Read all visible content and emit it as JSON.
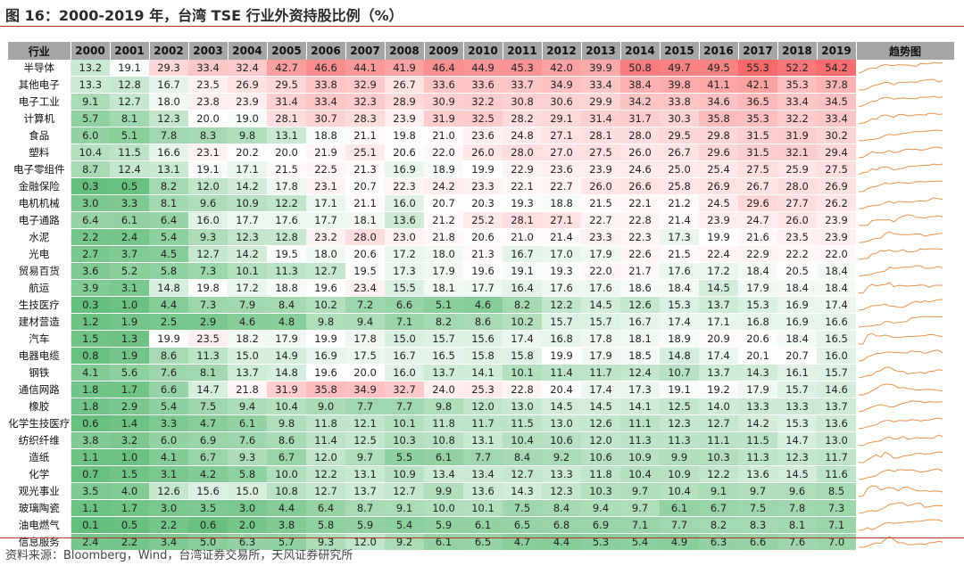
{
  "figure": {
    "title": "图 16：2000-2019 年，台湾 TSE 行业外资持股比例（%）",
    "source": "资料来源：Bloomberg，Wind，台湾证券交易所，天风证券研究所"
  },
  "table": {
    "industry_header": "行业",
    "trend_header": "趋势图"
  },
  "colors": {
    "high": "#f8696b",
    "mid": "#ffffff",
    "low": "#63be7b",
    "spark": "#e8924a",
    "header": "#a6a6a6",
    "rule": "#b8342b"
  },
  "chart_data": {
    "type": "heatmap",
    "title": "图 16：2000-2019 年，台湾 TSE 行业外资持股比例（%）",
    "unit": "%",
    "color_scale": [
      "#63be7b",
      "#ffffff",
      "#f8696b"
    ],
    "color_range": [
      0,
      55.3
    ],
    "columns": [
      "2000",
      "2001",
      "2002",
      "2003",
      "2004",
      "2005",
      "2006",
      "2007",
      "2008",
      "2009",
      "2010",
      "2011",
      "2012",
      "2013",
      "2014",
      "2015",
      "2016",
      "2017",
      "2018",
      "2019"
    ],
    "rows": [
      {
        "name": "半导体",
        "values": [
          13.2,
          19.1,
          29.3,
          33.4,
          32.4,
          42.7,
          46.6,
          44.1,
          41.9,
          46.4,
          44.9,
          45.3,
          42.0,
          39.9,
          50.8,
          49.7,
          49.5,
          55.3,
          52.2,
          54.2
        ]
      },
      {
        "name": "其他电子",
        "values": [
          13.3,
          12.8,
          16.7,
          23.5,
          26.9,
          29.5,
          33.8,
          32.9,
          26.7,
          33.6,
          33.6,
          33.7,
          34.9,
          33.4,
          38.4,
          39.8,
          41.1,
          42.1,
          35.3,
          37.8
        ]
      },
      {
        "name": "电子工业",
        "values": [
          9.1,
          12.7,
          18.0,
          23.8,
          23.9,
          31.4,
          33.4,
          32.3,
          28.9,
          30.9,
          32.2,
          30.8,
          30.6,
          29.9,
          34.2,
          33.8,
          34.6,
          36.5,
          33.4,
          34.5
        ]
      },
      {
        "name": "计算机",
        "values": [
          5.7,
          8.1,
          12.3,
          20.0,
          19.0,
          28.1,
          30.7,
          28.3,
          23.9,
          31.9,
          32.5,
          28.2,
          29.1,
          31.4,
          31.7,
          30.3,
          35.8,
          35.3,
          32.2,
          33.4
        ]
      },
      {
        "name": "食品",
        "values": [
          6.0,
          5.1,
          7.8,
          8.3,
          9.8,
          13.1,
          18.8,
          21.1,
          19.8,
          21.0,
          23.6,
          24.8,
          27.1,
          28.1,
          28.0,
          29.5,
          29.8,
          31.5,
          31.9,
          30.2
        ]
      },
      {
        "name": "塑料",
        "values": [
          10.4,
          11.5,
          16.6,
          23.1,
          20.2,
          20.0,
          21.9,
          25.1,
          20.6,
          22.0,
          26.0,
          28.0,
          27.0,
          27.5,
          26.0,
          26.7,
          29.6,
          31.5,
          32.1,
          29.4
        ]
      },
      {
        "name": "电子零组件",
        "values": [
          8.7,
          12.4,
          13.1,
          19.1,
          17.1,
          21.5,
          22.5,
          21.3,
          16.9,
          18.9,
          19.9,
          22.9,
          23.6,
          23.9,
          24.6,
          25.0,
          25.4,
          27.5,
          25.9,
          27.5
        ]
      },
      {
        "name": "金融保险",
        "values": [
          0.3,
          0.5,
          8.2,
          12.0,
          14.2,
          17.8,
          23.1,
          20.7,
          22.3,
          24.2,
          23.3,
          22.1,
          22.7,
          26.0,
          26.6,
          25.8,
          26.9,
          26.7,
          28.0,
          26.9
        ]
      },
      {
        "name": "电机机械",
        "values": [
          3.0,
          3.3,
          8.1,
          9.6,
          10.9,
          12.2,
          17.1,
          21.1,
          16.0,
          20.7,
          20.3,
          19.3,
          18.8,
          21.5,
          22.1,
          21.2,
          24.5,
          29.6,
          27.7,
          26.2
        ]
      },
      {
        "name": "电子通路",
        "values": [
          6.4,
          6.1,
          6.4,
          16.0,
          17.7,
          17.6,
          17.7,
          18.1,
          13.6,
          21.2,
          25.2,
          28.1,
          27.1,
          22.7,
          22.8,
          21.4,
          23.9,
          24.7,
          26.0,
          23.9
        ]
      },
      {
        "name": "水泥",
        "values": [
          2.2,
          2.4,
          5.4,
          9.3,
          12.3,
          12.8,
          23.2,
          28.0,
          23.0,
          21.8,
          20.6,
          21.0,
          21.4,
          23.3,
          22.3,
          17.3,
          19.9,
          21.6,
          23.5,
          23.9
        ]
      },
      {
        "name": "光电",
        "values": [
          2.7,
          3.7,
          4.5,
          12.7,
          14.2,
          19.5,
          18.0,
          20.6,
          17.2,
          18.0,
          21.3,
          16.7,
          17.0,
          17.9,
          22.6,
          21.5,
          22.4,
          22.9,
          22.2,
          22.0
        ]
      },
      {
        "name": "贸易百货",
        "values": [
          3.6,
          5.2,
          5.8,
          7.3,
          10.1,
          11.3,
          12.7,
          19.5,
          17.3,
          17.9,
          19.6,
          19.1,
          19.3,
          22.0,
          21.7,
          17.6,
          17.2,
          18.4,
          20.5,
          18.4
        ]
      },
      {
        "name": "航运",
        "values": [
          3.9,
          3.1,
          14.8,
          19.8,
          17.2,
          18.8,
          19.6,
          23.4,
          15.5,
          18.1,
          17.7,
          16.4,
          17.6,
          17.6,
          18.6,
          18.4,
          14.5,
          17.9,
          18.4,
          18.4
        ]
      },
      {
        "name": "生技医疗",
        "values": [
          0.3,
          1.0,
          4.4,
          7.3,
          7.9,
          8.4,
          10.2,
          7.2,
          6.6,
          5.1,
          4.6,
          8.2,
          12.2,
          14.5,
          12.6,
          15.3,
          13.7,
          15.3,
          16.9,
          17.4
        ]
      },
      {
        "name": "建材营造",
        "values": [
          1.2,
          1.9,
          2.5,
          2.9,
          4.6,
          4.8,
          9.8,
          9.4,
          7.1,
          8.2,
          8.6,
          10.2,
          15.7,
          15.7,
          16.7,
          17.4,
          17.1,
          16.8,
          16.9,
          16.6
        ]
      },
      {
        "name": "汽车",
        "values": [
          1.5,
          1.3,
          19.9,
          23.5,
          18.2,
          17.9,
          19.9,
          17.8,
          15.0,
          15.7,
          15.6,
          17.4,
          16.8,
          17.8,
          18.1,
          18.9,
          20.9,
          20.6,
          18.4,
          16.5
        ]
      },
      {
        "name": "电器电缆",
        "values": [
          0.8,
          1.9,
          8.6,
          11.3,
          15.0,
          14.9,
          16.9,
          17.5,
          16.7,
          16.5,
          15.8,
          15.8,
          19.9,
          17.9,
          18.5,
          14.8,
          17.4,
          20.1,
          20.7,
          16.0
        ]
      },
      {
        "name": "钢铁",
        "values": [
          4.1,
          5.6,
          7.6,
          8.1,
          13.7,
          14.8,
          19.6,
          20.0,
          16.0,
          13.7,
          14.1,
          10.1,
          11.4,
          11.7,
          12.4,
          10.7,
          13.7,
          14.3,
          16.1,
          15.7
        ]
      },
      {
        "name": "通信网路",
        "values": [
          1.8,
          1.7,
          6.6,
          14.7,
          21.8,
          31.9,
          35.8,
          34.9,
          32.7,
          24.0,
          25.3,
          22.8,
          20.4,
          17.4,
          17.3,
          19.1,
          19.2,
          17.9,
          15.7,
          14.6
        ]
      },
      {
        "name": "橡胶",
        "values": [
          1.8,
          2.9,
          5.4,
          7.5,
          9.4,
          10.4,
          9.0,
          7.7,
          7.7,
          9.8,
          12.0,
          13.0,
          14.5,
          14.5,
          14.1,
          12.5,
          14.0,
          13.3,
          13.3,
          13.7
        ]
      },
      {
        "name": "化学生技医疗",
        "values": [
          0.6,
          1.4,
          3.3,
          4.7,
          6.1,
          9.8,
          11.8,
          12.1,
          10.1,
          11.8,
          11.7,
          11.5,
          13.0,
          12.6,
          11.1,
          12.3,
          12.7,
          14.2,
          15.3,
          13.6
        ]
      },
      {
        "name": "纺织纤维",
        "values": [
          3.8,
          3.2,
          6.0,
          6.9,
          7.6,
          8.6,
          11.4,
          12.5,
          10.3,
          10.8,
          13.1,
          10.4,
          10.6,
          12.0,
          11.3,
          11.3,
          11.1,
          11.5,
          14.7,
          13.0
        ]
      },
      {
        "name": "造纸",
        "values": [
          1.1,
          1.0,
          4.1,
          6.7,
          9.3,
          6.7,
          12.0,
          9.7,
          5.5,
          6.1,
          7.7,
          8.4,
          9.2,
          10.6,
          10.9,
          9.9,
          10.3,
          11.3,
          12.3,
          11.7
        ]
      },
      {
        "name": "化学",
        "values": [
          0.7,
          1.5,
          3.1,
          4.2,
          5.8,
          10.0,
          12.2,
          13.1,
          10.9,
          13.4,
          13.4,
          12.7,
          13.3,
          11.8,
          10.4,
          10.9,
          12.2,
          13.6,
          14.5,
          11.6
        ]
      },
      {
        "name": "观光事业",
        "values": [
          3.5,
          4.0,
          12.6,
          15.6,
          15.0,
          10.8,
          12.7,
          13.7,
          12.7,
          9.9,
          13.6,
          14.3,
          12.3,
          10.3,
          9.7,
          10.4,
          9.1,
          9.7,
          9.6,
          8.5
        ]
      },
      {
        "name": "玻璃陶瓷",
        "values": [
          1.1,
          1.7,
          3.0,
          3.5,
          3.0,
          4.4,
          6.4,
          8.7,
          9.1,
          10.0,
          10.1,
          7.5,
          8.4,
          9.4,
          9.7,
          6.1,
          6.7,
          7.5,
          7.8,
          7.3
        ]
      },
      {
        "name": "油电燃气",
        "values": [
          0.1,
          0.5,
          2.2,
          0.6,
          2.0,
          3.8,
          5.8,
          5.9,
          5.4,
          5.9,
          6.1,
          6.5,
          6.8,
          6.9,
          7.1,
          7.7,
          8.2,
          8.3,
          8.1,
          7.1
        ]
      },
      {
        "name": "信息服务",
        "values": [
          2.4,
          2.2,
          3.4,
          5.0,
          6.3,
          5.7,
          9.3,
          12.0,
          9.2,
          6.1,
          6.5,
          4.7,
          4.4,
          5.3,
          5.4,
          4.9,
          6.3,
          6.6,
          7.6,
          7.0
        ]
      }
    ]
  }
}
